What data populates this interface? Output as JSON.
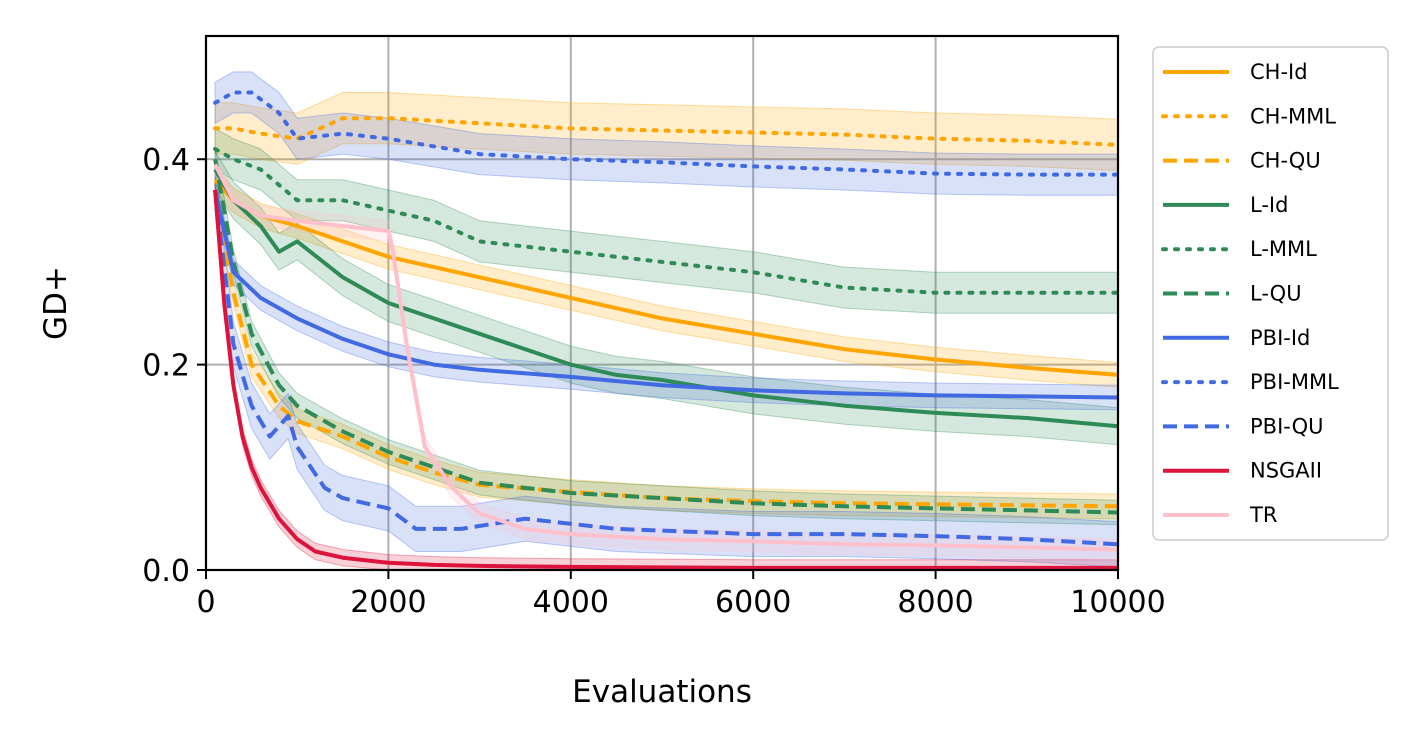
{
  "chart_data": {
    "type": "line",
    "title": "",
    "xlabel": "Evaluations",
    "ylabel": "GD+",
    "xlim": [
      0,
      10000
    ],
    "ylim": [
      0,
      0.52
    ],
    "grid": true,
    "legend_position": "outside-right",
    "x_ticks": [
      0,
      2000,
      4000,
      6000,
      8000,
      10000
    ],
    "x_tick_labels": [
      "0",
      "2000",
      "4000",
      "6000",
      "8000",
      "10000"
    ],
    "y_ticks": [
      0.0,
      0.2,
      0.4
    ],
    "y_tick_labels": [
      "0.0",
      "0.2",
      "0.4"
    ],
    "series": [
      {
        "name": "CH-Id",
        "color": "#ffa500",
        "style": "solid",
        "band": 0.012,
        "x": [
          100,
          300,
          600,
          1000,
          1500,
          2000,
          2500,
          3000,
          4000,
          5000,
          6000,
          7000,
          8000,
          9000,
          10000
        ],
        "y": [
          0.38,
          0.36,
          0.345,
          0.335,
          0.32,
          0.305,
          0.295,
          0.285,
          0.265,
          0.245,
          0.23,
          0.215,
          0.205,
          0.197,
          0.19
        ]
      },
      {
        "name": "CH-MML",
        "color": "#ffa500",
        "style": "dotted",
        "band": 0.025,
        "x": [
          100,
          300,
          600,
          1000,
          1500,
          2000,
          3000,
          4000,
          5000,
          6000,
          7000,
          8000,
          9000,
          10000
        ],
        "y": [
          0.43,
          0.43,
          0.425,
          0.42,
          0.44,
          0.44,
          0.435,
          0.43,
          0.428,
          0.426,
          0.424,
          0.42,
          0.418,
          0.414
        ]
      },
      {
        "name": "CH-QU",
        "color": "#ffa500",
        "style": "dashed",
        "band": 0.012,
        "x": [
          100,
          300,
          500,
          800,
          1000,
          1500,
          2000,
          2500,
          3000,
          4000,
          5000,
          6000,
          7000,
          8000,
          9000,
          10000
        ],
        "y": [
          0.37,
          0.27,
          0.2,
          0.16,
          0.145,
          0.13,
          0.11,
          0.095,
          0.083,
          0.076,
          0.07,
          0.067,
          0.065,
          0.064,
          0.063,
          0.062
        ]
      },
      {
        "name": "L-Id",
        "color": "#2e8b57",
        "style": "solid",
        "band": 0.018,
        "x": [
          100,
          300,
          600,
          800,
          1000,
          1500,
          2000,
          2500,
          3000,
          4000,
          4500,
          5000,
          6000,
          7000,
          8000,
          9000,
          10000
        ],
        "y": [
          0.39,
          0.36,
          0.335,
          0.31,
          0.32,
          0.285,
          0.26,
          0.245,
          0.23,
          0.2,
          0.19,
          0.185,
          0.17,
          0.16,
          0.153,
          0.148,
          0.14
        ]
      },
      {
        "name": "L-MML",
        "color": "#2e8b57",
        "style": "dotted",
        "band": 0.02,
        "x": [
          100,
          300,
          600,
          1000,
          1500,
          2000,
          2500,
          3000,
          4000,
          5000,
          6000,
          7000,
          8000,
          9000,
          10000
        ],
        "y": [
          0.41,
          0.4,
          0.39,
          0.36,
          0.36,
          0.35,
          0.34,
          0.32,
          0.31,
          0.3,
          0.29,
          0.275,
          0.27,
          0.27,
          0.27
        ]
      },
      {
        "name": "L-QU",
        "color": "#2e8b57",
        "style": "dashed",
        "band": 0.012,
        "x": [
          100,
          300,
          500,
          800,
          1000,
          1500,
          2000,
          2500,
          3000,
          4000,
          5000,
          6000,
          7000,
          8000,
          9000,
          10000
        ],
        "y": [
          0.4,
          0.3,
          0.23,
          0.18,
          0.16,
          0.135,
          0.115,
          0.1,
          0.085,
          0.075,
          0.07,
          0.065,
          0.062,
          0.06,
          0.058,
          0.056
        ]
      },
      {
        "name": "PBI-Id",
        "color": "#4169e1",
        "style": "solid",
        "band": 0.012,
        "x": [
          100,
          300,
          600,
          1000,
          1500,
          2000,
          2500,
          3000,
          4000,
          5000,
          6000,
          7000,
          8000,
          9000,
          10000
        ],
        "y": [
          0.37,
          0.29,
          0.265,
          0.245,
          0.225,
          0.21,
          0.2,
          0.195,
          0.188,
          0.18,
          0.175,
          0.172,
          0.17,
          0.169,
          0.168
        ]
      },
      {
        "name": "PBI-MML",
        "color": "#4169e1",
        "style": "dotted",
        "band": 0.02,
        "x": [
          100,
          300,
          500,
          800,
          1000,
          1500,
          2000,
          3000,
          4000,
          5000,
          6000,
          7000,
          8000,
          9000,
          10000
        ],
        "y": [
          0.455,
          0.465,
          0.465,
          0.445,
          0.42,
          0.425,
          0.42,
          0.405,
          0.4,
          0.397,
          0.393,
          0.39,
          0.386,
          0.385,
          0.385
        ]
      },
      {
        "name": "PBI-QU",
        "color": "#4169e1",
        "style": "dashed",
        "band": 0.022,
        "x": [
          100,
          300,
          500,
          700,
          900,
          1000,
          1300,
          1500,
          2000,
          2300,
          2800,
          3500,
          4500,
          6000,
          7000,
          8000,
          9000,
          10000
        ],
        "y": [
          0.37,
          0.22,
          0.16,
          0.13,
          0.15,
          0.12,
          0.08,
          0.07,
          0.06,
          0.04,
          0.04,
          0.05,
          0.04,
          0.035,
          0.035,
          0.033,
          0.03,
          0.025
        ]
      },
      {
        "name": "NSGAII",
        "color": "#dc143c",
        "style": "solid",
        "band": 0.008,
        "x": [
          100,
          200,
          300,
          400,
          500,
          600,
          800,
          1000,
          1200,
          1500,
          2000,
          2500,
          3000,
          4000,
          6000,
          8000,
          10000
        ],
        "y": [
          0.37,
          0.26,
          0.18,
          0.13,
          0.1,
          0.08,
          0.05,
          0.03,
          0.018,
          0.012,
          0.007,
          0.005,
          0.004,
          0.003,
          0.002,
          0.002,
          0.002
        ]
      },
      {
        "name": "TR",
        "color": "#ffc0cb",
        "style": "solid",
        "band": 0.01,
        "x": [
          100,
          300,
          600,
          1000,
          1500,
          2000,
          2050,
          2200,
          2400,
          2700,
          3000,
          3500,
          4000,
          5000,
          6000,
          7000,
          8000,
          9000,
          10000
        ],
        "y": [
          0.395,
          0.36,
          0.345,
          0.34,
          0.335,
          0.33,
          0.31,
          0.22,
          0.12,
          0.08,
          0.055,
          0.04,
          0.035,
          0.03,
          0.028,
          0.025,
          0.024,
          0.022,
          0.02
        ]
      }
    ]
  }
}
